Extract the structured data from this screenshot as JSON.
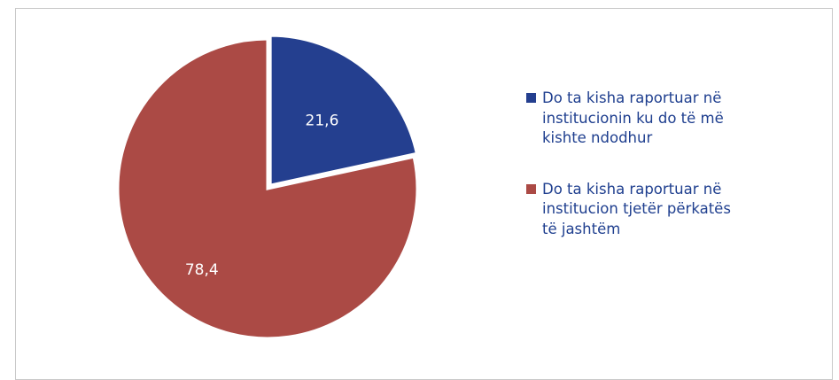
{
  "chart_data": {
    "type": "pie",
    "categories": [
      "Do ta kisha raportuar në institucionin ku do të më kishte ndodhur",
      "Do ta kisha raportuar në institucion tjetër përkatës të jashtëm"
    ],
    "values": [
      21.6,
      78.4
    ],
    "value_labels": [
      "21,6",
      "78,4"
    ],
    "colors": [
      "#243f8f",
      "#ab4a45"
    ],
    "legend_position": "right",
    "title": "",
    "start_angle": "12 o'clock, clockwise"
  },
  "legend": {
    "items": [
      {
        "line1": "Do ta kisha raportuar në",
        "line2": "institucionin ku do të më",
        "line3": "kishte ndodhur",
        "color": "#243f8f"
      },
      {
        "line1": "Do ta kisha raportuar në",
        "line2": "institucion tjetër përkatës",
        "line3": "të jashtëm",
        "color": "#ab4a45"
      }
    ]
  },
  "style": {
    "text_color": "#1f3f8f",
    "label_color": "#ffffff",
    "border_color": "#c9c9c9"
  }
}
